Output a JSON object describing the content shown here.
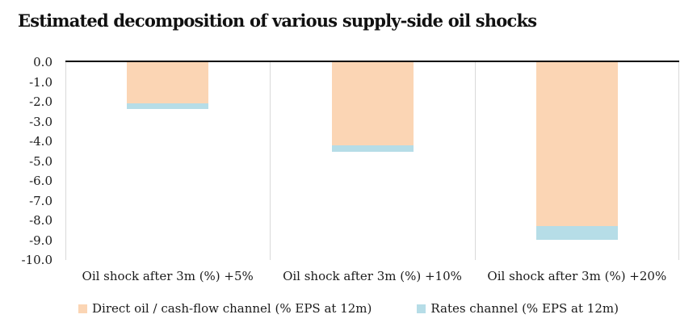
{
  "title": "Estimated decomposition of various supply-side oil shocks",
  "colors": {
    "direct_channel": "#FBD5B4",
    "rates_channel": "#B6DDE7",
    "axis_line": "#000000",
    "separator_line": "#D9D9D9",
    "text": "#1A1A1A"
  },
  "chart_data": {
    "type": "bar",
    "stacked": true,
    "orientation": "vertical",
    "title": "Estimated decomposition of various supply-side oil shocks",
    "categories": [
      "Oil shock after 3m (%) +5%",
      "Oil shock after 3m (%) +10%",
      "Oil shock after 3m (%) +20%"
    ],
    "series": [
      {
        "name": "Direct oil / cash-flow channel (% EPS at 12m)",
        "color": "#FBD5B4",
        "values": [
          -2.1,
          -4.2,
          -8.3
        ]
      },
      {
        "name": "Rates channel (% EPS at 12m)",
        "color": "#B6DDE7",
        "values": [
          -0.25,
          -0.35,
          -0.7
        ]
      }
    ],
    "totals": [
      -2.35,
      -4.55,
      -9.0
    ],
    "ylim": [
      -10.0,
      0.0
    ],
    "ytick_step": 1.0,
    "ytick_labels": [
      "0.0",
      "-1.0",
      "-2.0",
      "-3.0",
      "-4.0",
      "-5.0",
      "-6.0",
      "-7.0",
      "-8.0",
      "-9.0",
      "-10.0"
    ],
    "xlabel": "",
    "ylabel": "",
    "grid": "vertical-category-separators-only",
    "legend_position": "bottom"
  }
}
